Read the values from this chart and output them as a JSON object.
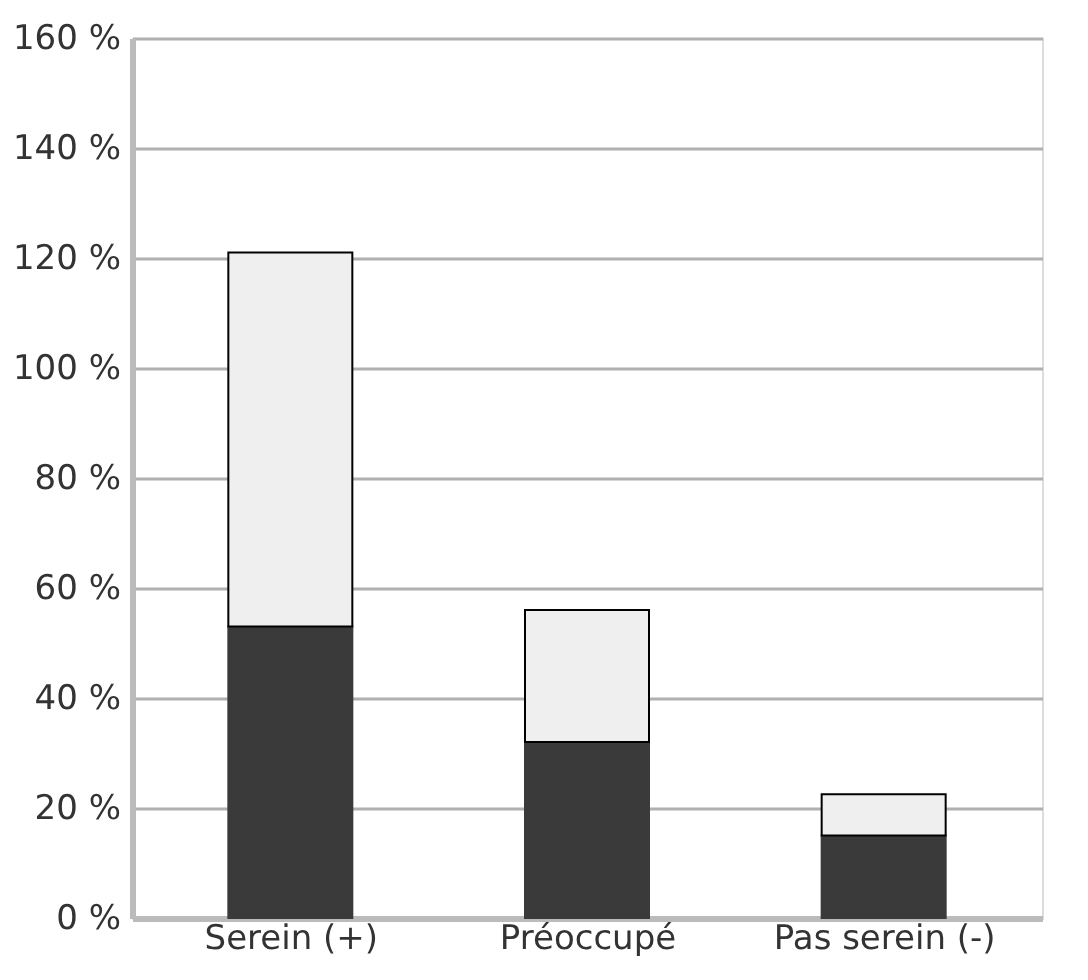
{
  "chart_data": {
    "type": "bar",
    "stacked": true,
    "categories": [
      "Serein (+)",
      "Préoccupé",
      "Pas serein (-)"
    ],
    "series": [
      {
        "color": "#3a3a3a",
        "values": [
          53,
          32,
          15
        ]
      },
      {
        "color": "#efefef",
        "values": [
          68,
          24,
          7.5
        ]
      }
    ],
    "ylim": [
      0,
      160
    ],
    "yticks": [
      {
        "value": 0,
        "label": "0 %"
      },
      {
        "value": 20,
        "label": "20 %"
      },
      {
        "value": 40,
        "label": "40 %"
      },
      {
        "value": 60,
        "label": "60 %"
      },
      {
        "value": 80,
        "label": "80 %"
      },
      {
        "value": 100,
        "label": "100 %"
      },
      {
        "value": 120,
        "label": "120 %"
      },
      {
        "value": 140,
        "label": "140 %"
      },
      {
        "value": 160,
        "label": "160 %"
      }
    ],
    "grid": "y"
  }
}
